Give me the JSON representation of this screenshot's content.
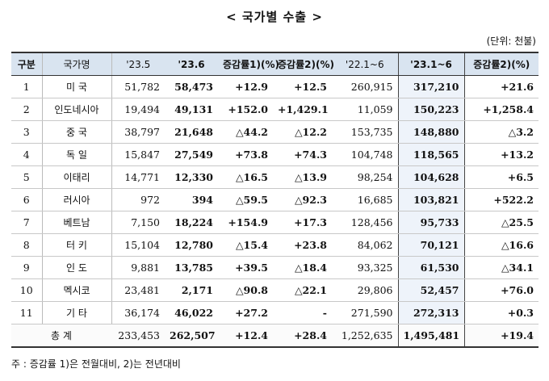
{
  "title": "< 국가별 수출 >",
  "unit": "(단위: 천불)",
  "headers": [
    "구분",
    "국가명",
    "'23.5",
    "'23.6",
    "증감률1)(%)",
    "증감률2)(%)",
    "'22.1~6",
    "'23.1~6",
    "증감률2)(%)"
  ],
  "rows": [
    [
      "1",
      "미 국",
      "51,782",
      "58,473",
      "+12.9",
      "+12.5",
      "260,915",
      "317,210",
      "+21.6"
    ],
    [
      "2",
      "인도네시아",
      "19,494",
      "49,131",
      "+152.0",
      "+1,429.1",
      "11,059",
      "150,223",
      "+1,258.4"
    ],
    [
      "3",
      "중 국",
      "38,797",
      "21,648",
      "△44.2",
      "△12.2",
      "153,735",
      "148,880",
      "△3.2"
    ],
    [
      "4",
      "독 일",
      "15,847",
      "27,549",
      "+73.8",
      "+74.3",
      "104,748",
      "118,565",
      "+13.2"
    ],
    [
      "5",
      "이태리",
      "14,771",
      "12,330",
      "△16.5",
      "△13.9",
      "98,254",
      "104,628",
      "+6.5"
    ],
    [
      "6",
      "러시아",
      "972",
      "394",
      "△59.5",
      "△92.3",
      "16,685",
      "103,821",
      "+522.2"
    ],
    [
      "7",
      "베트남",
      "7,150",
      "18,224",
      "+154.9",
      "+17.3",
      "128,456",
      "95,733",
      "△25.5"
    ],
    [
      "8",
      "터 키",
      "15,104",
      "12,780",
      "△15.4",
      "+23.8",
      "84,062",
      "70,121",
      "△16.6"
    ],
    [
      "9",
      "인 도",
      "9,881",
      "13,785",
      "+39.5",
      "△18.4",
      "93,325",
      "61,530",
      "△34.1"
    ],
    [
      "10",
      "멕시코",
      "23,481",
      "2,171",
      "△90.8",
      "△22.1",
      "29,806",
      "52,457",
      "+76.0"
    ],
    [
      "11",
      "기 타",
      "36,174",
      "46,022",
      "+27.2",
      "-",
      "271,590",
      "272,313",
      "+0.3"
    ]
  ],
  "total": [
    "총 계",
    "233,453",
    "262,507",
    "+12.4",
    "+28.4",
    "1,252,635",
    "1,495,481",
    "+19.4"
  ],
  "note": "주 : 증감률 1)은 전월대비, 2)는 전년대비"
}
